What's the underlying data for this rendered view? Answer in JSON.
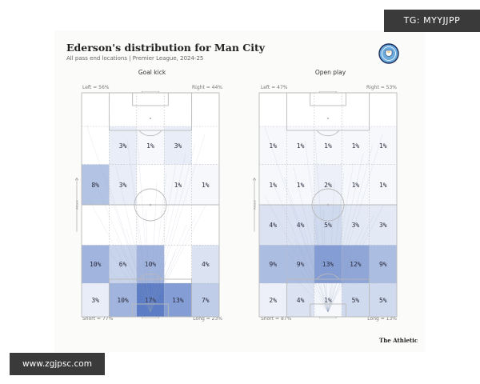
{
  "header": {
    "title": "Ederson's distribution for Man City",
    "subtitle": "All pass end locations | Premier League, 2024-25"
  },
  "watermarks": {
    "telegram": "TG: MYYJJPP",
    "site": "www.zgjpsc.com"
  },
  "footer": {
    "brand": "The Athletic"
  },
  "colors": {
    "zone_fill": "#4a6fbf",
    "pitch_line": "#b9b9b9",
    "card_bg": "#fbfbf9"
  },
  "chart_data": [
    {
      "type": "heatmap",
      "title": "Goal kick",
      "labels": {
        "left": "Left = 56%",
        "right": "Right = 44%",
        "short": "Short = 77%",
        "long": "Long = 23%",
        "attack": "Attack"
      },
      "grid": [
        [
          "",
          "",
          "",
          "",
          ""
        ],
        [
          "",
          "3%",
          "1%",
          "3%",
          ""
        ],
        [
          "8%",
          "3%",
          "",
          "1%",
          "1%"
        ],
        [
          "",
          "",
          "",
          "",
          ""
        ],
        [
          "10%",
          "6%",
          "10%",
          "",
          "4%"
        ],
        [
          "3%",
          "10%",
          "17%",
          "13%",
          "7%"
        ]
      ],
      "intensity": [
        [
          0,
          0,
          0,
          0,
          0
        ],
        [
          0,
          0.12,
          0.05,
          0.12,
          0
        ],
        [
          0.42,
          0.12,
          0,
          0.05,
          0.05
        ],
        [
          0,
          0,
          0,
          0,
          0
        ],
        [
          0.52,
          0.3,
          0.52,
          0,
          0.2
        ],
        [
          0.12,
          0.52,
          0.9,
          0.68,
          0.35
        ]
      ]
    },
    {
      "type": "heatmap",
      "title": "Open play",
      "labels": {
        "left": "Left = 47%",
        "right": "Right = 53%",
        "short": "Short = 87%",
        "long": "Long = 13%",
        "attack": "Attack"
      },
      "grid": [
        [
          "",
          "",
          "",
          "",
          ""
        ],
        [
          "1%",
          "1%",
          "1%",
          "1%",
          "1%"
        ],
        [
          "1%",
          "1%",
          "2%",
          "1%",
          "1%"
        ],
        [
          "4%",
          "4%",
          "5%",
          "3%",
          "3%"
        ],
        [
          "9%",
          "9%",
          "13%",
          "12%",
          "9%"
        ],
        [
          "2%",
          "4%",
          "1%",
          "5%",
          "5%"
        ]
      ],
      "intensity": [
        [
          0,
          0,
          0,
          0,
          0
        ],
        [
          0.05,
          0.05,
          0.05,
          0.05,
          0.05
        ],
        [
          0.05,
          0.05,
          0.1,
          0.05,
          0.05
        ],
        [
          0.2,
          0.2,
          0.26,
          0.15,
          0.15
        ],
        [
          0.46,
          0.46,
          0.68,
          0.62,
          0.46
        ],
        [
          0.1,
          0.2,
          0.05,
          0.26,
          0.26
        ]
      ]
    }
  ]
}
